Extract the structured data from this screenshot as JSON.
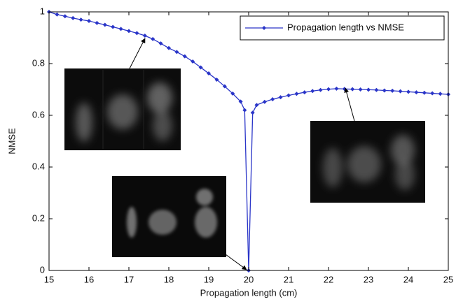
{
  "chart_data": {
    "type": "line",
    "xlabel": "Propagation length (cm)",
    "ylabel": "NMSE",
    "x": [
      15,
      15.2,
      15.4,
      15.6,
      15.8,
      16,
      16.2,
      16.4,
      16.6,
      16.8,
      17,
      17.2,
      17.4,
      17.6,
      17.8,
      18,
      18.2,
      18.4,
      18.6,
      18.8,
      19,
      19.2,
      19.4,
      19.6,
      19.8,
      19.9,
      20,
      20.1,
      20.2,
      20.4,
      20.6,
      20.8,
      21,
      21.2,
      21.4,
      21.6,
      21.8,
      22,
      22.2,
      22.4,
      22.6,
      22.8,
      23,
      23.2,
      23.4,
      23.6,
      23.8,
      24,
      24.2,
      24.4,
      24.6,
      24.8,
      25
    ],
    "series": [
      {
        "name": "Propagation length vs NMSE",
        "color": "#2a35c8",
        "values": [
          1.0,
          0.99,
          0.983,
          0.976,
          0.97,
          0.965,
          0.957,
          0.95,
          0.942,
          0.934,
          0.926,
          0.918,
          0.908,
          0.895,
          0.878,
          0.86,
          0.845,
          0.828,
          0.808,
          0.785,
          0.762,
          0.738,
          0.712,
          0.684,
          0.653,
          0.62,
          0,
          0.61,
          0.64,
          0.652,
          0.662,
          0.67,
          0.677,
          0.683,
          0.689,
          0.694,
          0.698,
          0.701,
          0.703,
          0.702,
          0.701,
          0.7,
          0.699,
          0.698,
          0.696,
          0.695,
          0.693,
          0.691,
          0.689,
          0.687,
          0.685,
          0.683,
          0.681
        ]
      }
    ],
    "xlim": [
      15,
      25
    ],
    "xticks": [
      15,
      16,
      17,
      18,
      19,
      20,
      21,
      22,
      23,
      24,
      25
    ],
    "ylim": [
      0,
      1
    ],
    "yticks": [
      0,
      0.2,
      0.4,
      0.6,
      0.8,
      1
    ],
    "grid": false,
    "legend": "upper right"
  }
}
